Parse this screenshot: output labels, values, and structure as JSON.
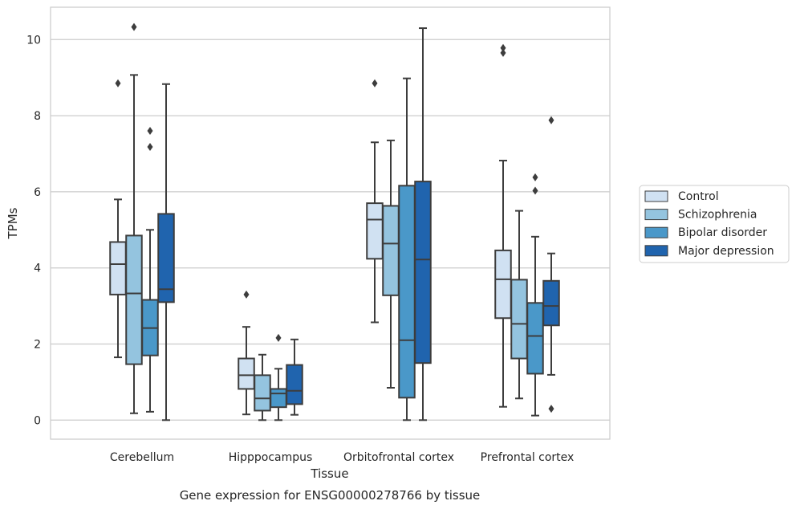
{
  "chart_data": {
    "type": "box",
    "title": "Gene expression for ENSG00000278766 by tissue",
    "xlabel": "Tissue",
    "ylabel": "TPMs",
    "ylim": [
      -0.5,
      10.85
    ],
    "yticks": [
      0,
      2,
      4,
      6,
      8,
      10
    ],
    "grid": "horizontal",
    "legend_position": "right",
    "categories": [
      "Cerebellum",
      "Hipppocampus",
      "Orbitofrontal cortex",
      "Prefrontal cortex"
    ],
    "series": [
      {
        "name": "Control",
        "color": "#d0e1f2",
        "boxes": [
          {
            "whislo": 1.65,
            "q1": 3.3,
            "med": 4.1,
            "q3": 4.68,
            "whishi": 5.8,
            "fliers": [
              8.85
            ]
          },
          {
            "whislo": 0.15,
            "q1": 0.82,
            "med": 1.18,
            "q3": 1.62,
            "whishi": 2.45,
            "fliers": [
              3.3
            ]
          },
          {
            "whislo": 2.57,
            "q1": 4.24,
            "med": 5.27,
            "q3": 5.7,
            "whishi": 7.3,
            "fliers": [
              8.85
            ]
          },
          {
            "whislo": 0.35,
            "q1": 2.68,
            "med": 3.7,
            "q3": 4.46,
            "whishi": 6.82,
            "fliers": [
              9.65,
              9.78
            ]
          }
        ]
      },
      {
        "name": "Schizophrenia",
        "color": "#94c4df",
        "boxes": [
          {
            "whislo": 0.18,
            "q1": 1.47,
            "med": 3.33,
            "q3": 4.85,
            "whishi": 9.07,
            "fliers": [
              10.33
            ]
          },
          {
            "whislo": 0.0,
            "q1": 0.25,
            "med": 0.57,
            "q3": 1.18,
            "whishi": 1.72,
            "fliers": []
          },
          {
            "whislo": 0.85,
            "q1": 3.28,
            "med": 4.64,
            "q3": 5.63,
            "whishi": 7.35,
            "fliers": []
          },
          {
            "whislo": 0.57,
            "q1": 1.62,
            "med": 2.53,
            "q3": 3.69,
            "whishi": 5.5,
            "fliers": []
          }
        ]
      },
      {
        "name": "Bipolar disorder",
        "color": "#4a98c9",
        "boxes": [
          {
            "whislo": 0.22,
            "q1": 1.7,
            "med": 2.42,
            "q3": 3.16,
            "whishi": 5.0,
            "fliers": [
              7.18,
              7.6
            ]
          },
          {
            "whislo": 0.0,
            "q1": 0.34,
            "med": 0.7,
            "q3": 0.82,
            "whishi": 1.35,
            "fliers": [
              2.16
            ]
          },
          {
            "whislo": 0.0,
            "q1": 0.59,
            "med": 2.1,
            "q3": 6.16,
            "whishi": 8.98,
            "fliers": []
          },
          {
            "whislo": 0.12,
            "q1": 1.22,
            "med": 2.21,
            "q3": 3.08,
            "whishi": 4.82,
            "fliers": [
              6.03,
              6.38
            ]
          }
        ]
      },
      {
        "name": "Major depression",
        "color": "#2064ae",
        "boxes": [
          {
            "whislo": 0.0,
            "q1": 3.1,
            "med": 3.44,
            "q3": 5.42,
            "whishi": 8.83,
            "fliers": []
          },
          {
            "whislo": 0.14,
            "q1": 0.42,
            "med": 0.77,
            "q3": 1.45,
            "whishi": 2.12,
            "fliers": []
          },
          {
            "whislo": 0.0,
            "q1": 1.5,
            "med": 4.22,
            "q3": 6.27,
            "whishi": 10.3,
            "fliers": []
          },
          {
            "whislo": 1.19,
            "q1": 2.49,
            "med": 3.0,
            "q3": 3.66,
            "whishi": 4.38,
            "fliers": [
              0.3,
              7.88
            ]
          }
        ]
      }
    ]
  }
}
